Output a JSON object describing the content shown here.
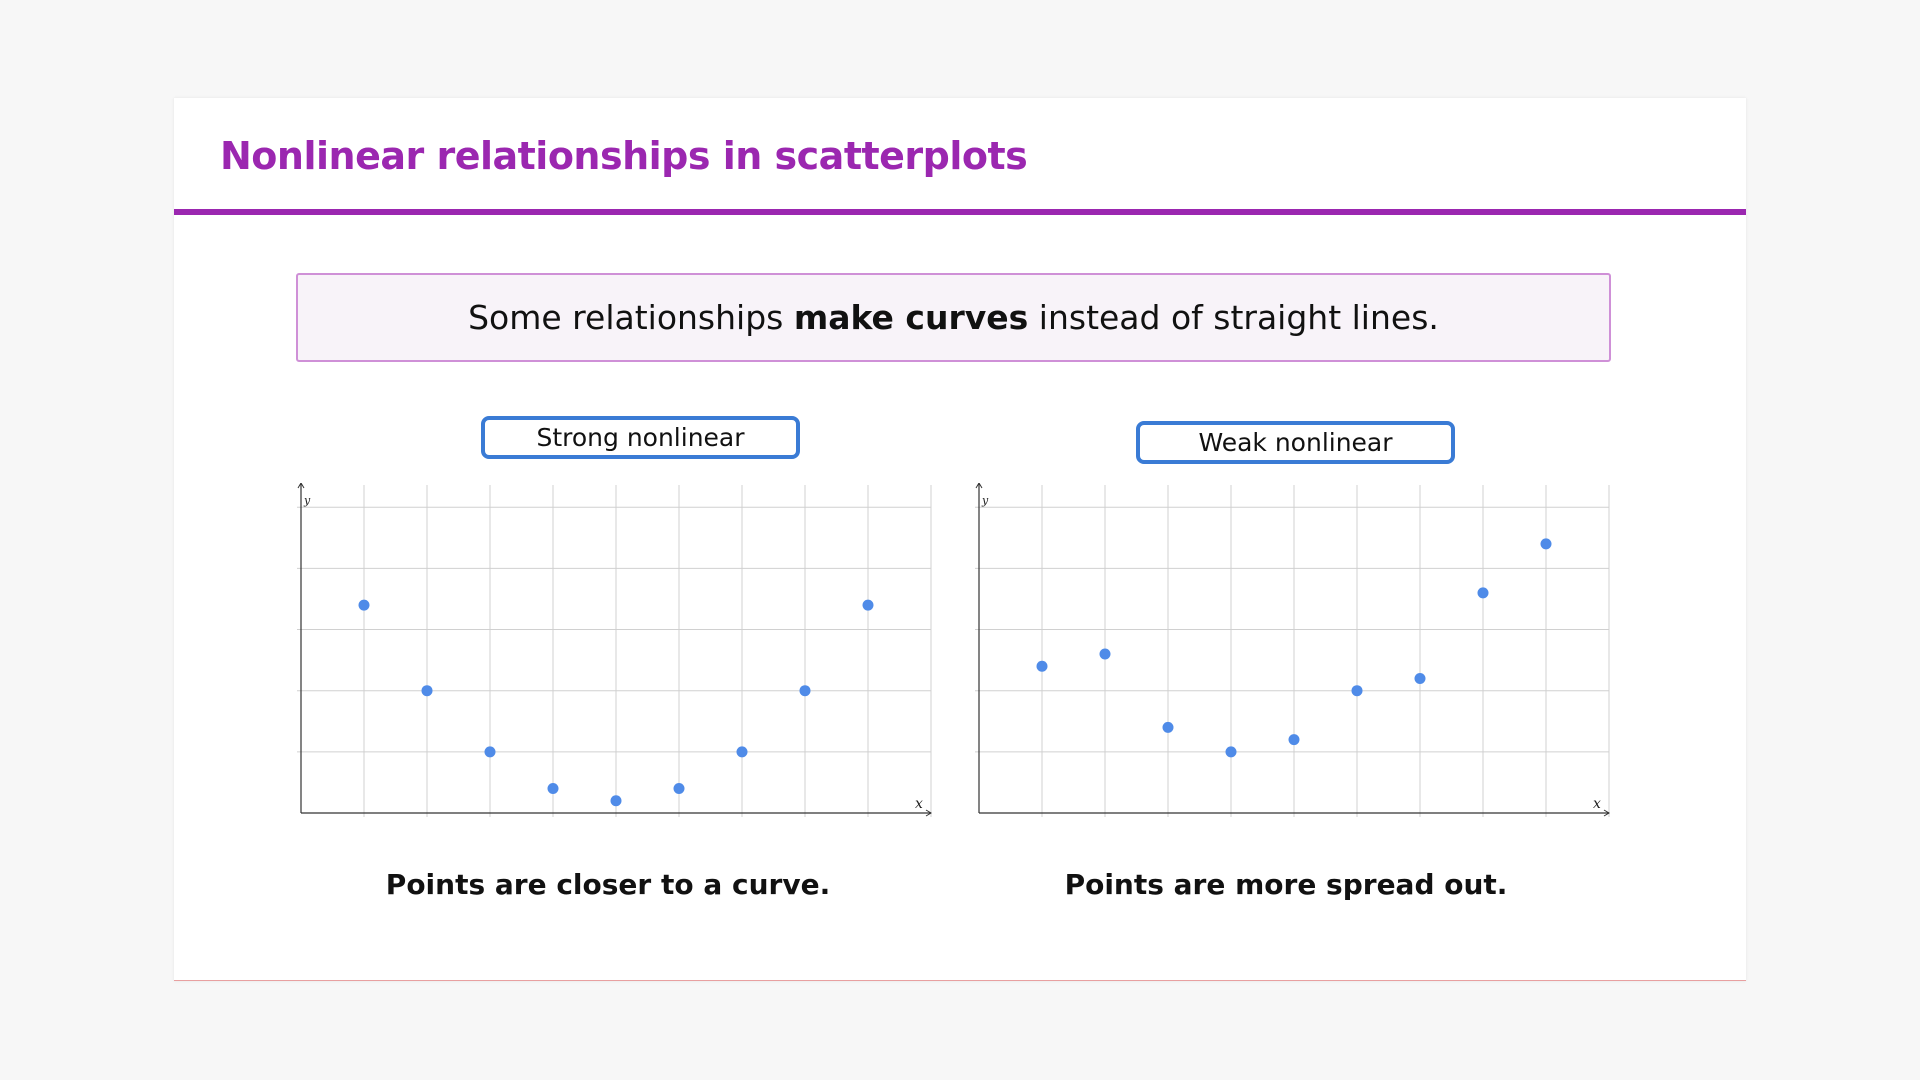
{
  "header": {
    "title": "Nonlinear relationships in scatterplots"
  },
  "callout": {
    "text_before": "Some relationships ",
    "text_bold": "make curves",
    "text_after": " instead of straight lines."
  },
  "colors": {
    "accent": "#9b27b0",
    "label_border": "#3a7bd5",
    "point": "#4f8be8",
    "grid": "#d0d0d0"
  },
  "panels": [
    {
      "label": "Strong nonlinear",
      "caption": "Points are closer to a curve."
    },
    {
      "label": "Weak nonlinear",
      "caption": "Points are more spread out."
    }
  ],
  "chart_data": [
    {
      "type": "scatter",
      "xlabel": "x",
      "ylabel": "y",
      "xlim": [
        0,
        10
      ],
      "ylim": [
        0,
        5.2
      ],
      "grid": true,
      "x": [
        1,
        2,
        3,
        4,
        5,
        6,
        7,
        8,
        9
      ],
      "y": [
        3.4,
        2.0,
        1.0,
        0.4,
        0.2,
        0.4,
        1.0,
        2.0,
        3.4
      ]
    },
    {
      "type": "scatter",
      "xlabel": "x",
      "ylabel": "y",
      "xlim": [
        0,
        10
      ],
      "ylim": [
        0,
        5.2
      ],
      "grid": true,
      "x": [
        1,
        2,
        3,
        4,
        5,
        6,
        7,
        8,
        9
      ],
      "y": [
        2.4,
        2.6,
        1.4,
        1.0,
        1.2,
        2.0,
        2.2,
        3.6,
        4.4
      ]
    }
  ]
}
